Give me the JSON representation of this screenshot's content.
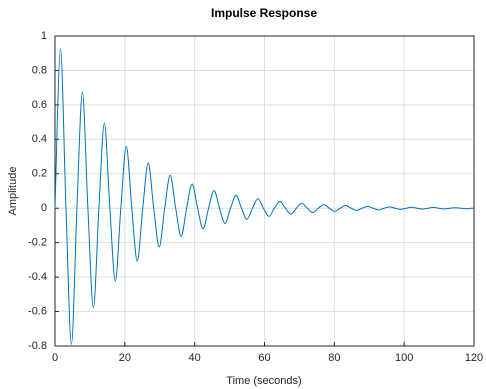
{
  "chart_data": {
    "type": "line",
    "title": "Impulse Response",
    "xlabel": "Time (seconds)",
    "ylabel": "Amplitude",
    "x": [
      0,
      1.57,
      3.14,
      4.71,
      6.28,
      7.85,
      9.42,
      11.0,
      12.57,
      14.14,
      15.71,
      17.28,
      18.85,
      20.42,
      21.99,
      23.56,
      25.13,
      26.7,
      28.27,
      29.85,
      31.42,
      32.99,
      34.56,
      36.13,
      37.7,
      39.27,
      40.84,
      42.41,
      43.98,
      45.55,
      47.12,
      48.69,
      50.27,
      51.84,
      53.41,
      54.98,
      56.55,
      58.12,
      59.69,
      61.26,
      62.83,
      64.4,
      65.97,
      67.54,
      69.12,
      70.69,
      72.26,
      73.83,
      75.4,
      76.97,
      78.54,
      80.11,
      81.68,
      83.25,
      84.82,
      86.39,
      87.96,
      89.54,
      91.11,
      92.68,
      94.25,
      95.82,
      97.39,
      98.96,
      100.53,
      102.1,
      103.67,
      105.24,
      106.81,
      108.38,
      109.96,
      111.53,
      113.1,
      114.67,
      116.24,
      117.81,
      119.38,
      120
    ],
    "values": [
      0,
      0.925,
      0,
      -0.79,
      0,
      0.675,
      0,
      -0.577,
      0,
      0.493,
      0,
      -0.422,
      0,
      0.36,
      0,
      -0.308,
      0,
      0.263,
      0,
      -0.225,
      0,
      0.192,
      0,
      -0.164,
      0,
      0.141,
      0,
      -0.12,
      0,
      0.103,
      0,
      -0.088,
      0,
      0.075,
      0,
      -0.064,
      0,
      0.055,
      0,
      -0.047,
      0,
      0.04,
      0,
      -0.034,
      0,
      0.029,
      0,
      -0.025,
      0,
      0.021,
      0,
      -0.018,
      0,
      0.016,
      0,
      -0.013,
      0,
      0.011,
      0,
      -0.01,
      0,
      0.008,
      0,
      -0.007,
      0,
      0.006,
      0,
      -0.005,
      0,
      0.005,
      0,
      -0.004,
      0,
      0.003,
      0,
      -0.003,
      0,
      0.001
    ],
    "color": "#0072bd",
    "xlim": [
      0,
      120
    ],
    "xticks": [
      0,
      20,
      40,
      60,
      80,
      100,
      120
    ],
    "ylim": [
      -0.8,
      1
    ],
    "yticks": [
      -0.8,
      -0.6,
      -0.4,
      -0.2,
      0,
      0.2,
      0.4,
      0.6,
      0.8,
      1
    ],
    "grid": true
  }
}
